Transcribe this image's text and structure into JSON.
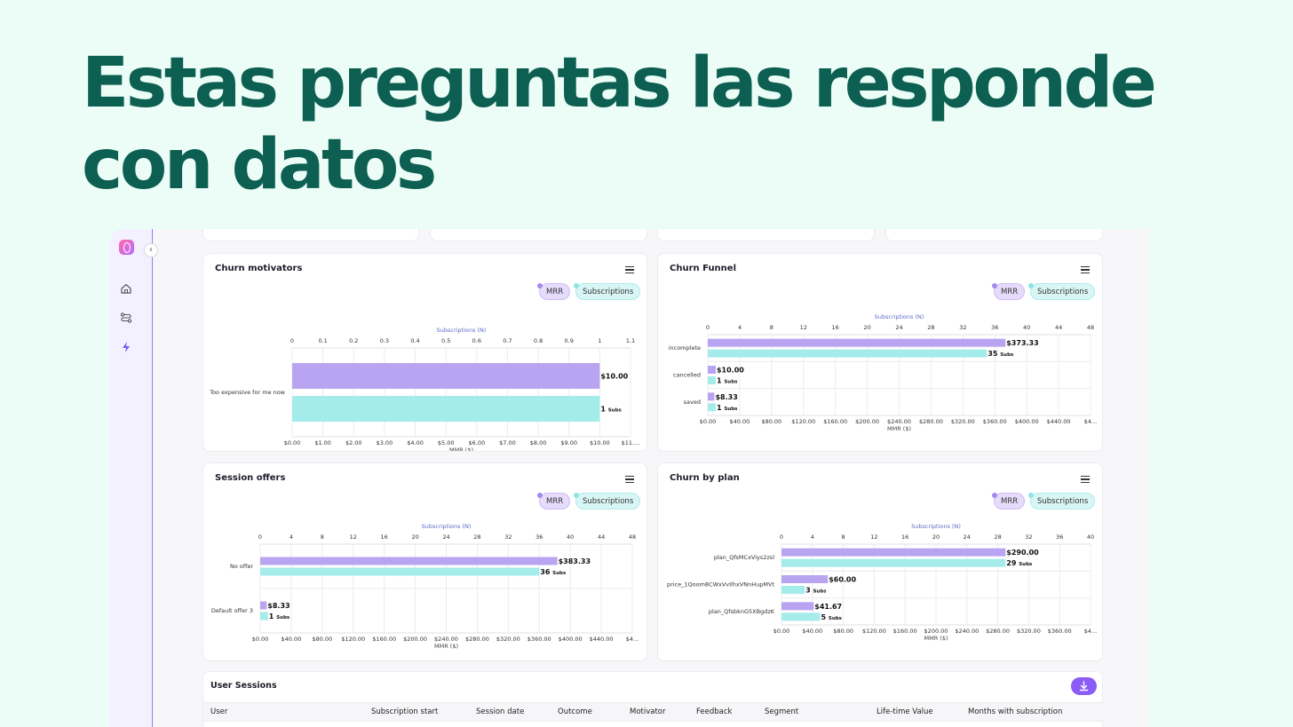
{
  "hero": {
    "line1": "Estas preguntas las responde",
    "line2": "con datos"
  },
  "sidebar": {
    "collapse_glyph": "‹",
    "items": [
      {
        "name": "home-icon"
      },
      {
        "name": "flows-icon"
      },
      {
        "name": "bolt-icon"
      }
    ]
  },
  "colors": {
    "mrr": "#b9a4f2",
    "subs": "#a3ecea",
    "accent": "#8b5cf6",
    "title": "#0d5f52"
  },
  "charts": {
    "motivators": {
      "title": "Churn motivators",
      "legend_mrr": "MRR",
      "legend_subs": "Subscriptions"
    },
    "funnel": {
      "title": "Churn Funnel",
      "legend_mrr": "MRR",
      "legend_subs": "Subscriptions"
    },
    "offers": {
      "title": "Session offers",
      "legend_mrr": "MRR",
      "legend_subs": "Subscriptions"
    },
    "plan": {
      "title": "Churn by plan",
      "legend_mrr": "MRR",
      "legend_subs": "Subscriptions"
    }
  },
  "chart_data": [
    {
      "type": "bar",
      "id": "motivators",
      "title": "Churn motivators",
      "top_axis_label": "Subscriptions (N)",
      "top_ticks": [
        "0",
        "0.1",
        "0.2",
        "0.3",
        "0.4",
        "0.5",
        "0.6",
        "0.7",
        "0.8",
        "0.9",
        "1",
        "1.1"
      ],
      "bottom_axis_label": "MMR ($)",
      "bottom_ticks": [
        "$0.00",
        "$1.00",
        "$2.00",
        "$3.00",
        "$4.00",
        "$5.00",
        "$6.00",
        "$7.00",
        "$8.00",
        "$9.00",
        "$10.00",
        "$11...."
      ],
      "categories": [
        "Too expensive for me now"
      ],
      "series": [
        {
          "name": "MRR",
          "values": [
            10.0
          ],
          "labels": [
            "$10.00"
          ],
          "max": 11
        },
        {
          "name": "Subscriptions",
          "values": [
            1
          ],
          "labels": [
            "1"
          ],
          "max": 1.1
        }
      ],
      "subs_suffix": "Subs"
    },
    {
      "type": "bar",
      "id": "funnel",
      "title": "Churn Funnel",
      "top_axis_label": "Subscriptions (N)",
      "top_ticks": [
        "0",
        "4",
        "8",
        "12",
        "16",
        "20",
        "24",
        "28",
        "32",
        "36",
        "40",
        "44",
        "48"
      ],
      "bottom_axis_label": "MMR ($)",
      "bottom_ticks": [
        "$0.00",
        "$40.00",
        "$80.00",
        "$120.00",
        "$160.00",
        "$200.00",
        "$240.00",
        "$280.00",
        "$320.00",
        "$360.00",
        "$400.00",
        "$440.00",
        "$4..."
      ],
      "categories": [
        "incomplete",
        "cancelled",
        "saved"
      ],
      "series": [
        {
          "name": "MRR",
          "values": [
            373.33,
            10.0,
            8.33
          ],
          "labels": [
            "$373.33",
            "$10.00",
            "$8.33"
          ],
          "max": 480
        },
        {
          "name": "Subscriptions",
          "values": [
            35,
            1,
            1
          ],
          "labels": [
            "35",
            "1",
            "1"
          ],
          "max": 48
        }
      ],
      "subs_suffix": "Subs"
    },
    {
      "type": "bar",
      "id": "offers",
      "title": "Session offers",
      "top_axis_label": "Subscriptions (N)",
      "top_ticks": [
        "0",
        "4",
        "8",
        "12",
        "16",
        "20",
        "24",
        "28",
        "32",
        "36",
        "40",
        "44",
        "48"
      ],
      "bottom_axis_label": "MMR ($)",
      "bottom_ticks": [
        "$0.00",
        "$40.00",
        "$80.00",
        "$120.00",
        "$160.00",
        "$200.00",
        "$240.00",
        "$280.00",
        "$320.00",
        "$360.00",
        "$400.00",
        "$440.00",
        "$4..."
      ],
      "categories": [
        "No offer",
        "Default offer 3"
      ],
      "series": [
        {
          "name": "MRR",
          "values": [
            383.33,
            8.33
          ],
          "labels": [
            "$383.33",
            "$8.33"
          ],
          "max": 480
        },
        {
          "name": "Subscriptions",
          "values": [
            36,
            1
          ],
          "labels": [
            "36",
            "1"
          ],
          "max": 48
        }
      ],
      "subs_suffix": "Subs"
    },
    {
      "type": "bar",
      "id": "plan",
      "title": "Churn by plan",
      "top_axis_label": "Subscriptions (N)",
      "top_ticks": [
        "0",
        "4",
        "8",
        "12",
        "16",
        "20",
        "24",
        "28",
        "32",
        "36",
        "40"
      ],
      "bottom_axis_label": "MMR ($)",
      "bottom_ticks": [
        "$0.00",
        "$40.00",
        "$80.00",
        "$120.00",
        "$160.00",
        "$200.00",
        "$240.00",
        "$280.00",
        "$320.00",
        "$360.00",
        "$4..."
      ],
      "categories": [
        "plan_QfsMCxViys2zsl",
        "price_1Qoom8CWxVvIlhxVNnHupMVt",
        "plan_QfsbknG5XBgdzK"
      ],
      "series": [
        {
          "name": "MRR",
          "values": [
            290.0,
            60.0,
            41.67
          ],
          "labels": [
            "$290.00",
            "$60.00",
            "$41.67"
          ],
          "max": 400
        },
        {
          "name": "Subscriptions",
          "values": [
            29,
            3,
            5
          ],
          "labels": [
            "29",
            "3",
            "5"
          ],
          "max": 40
        }
      ],
      "subs_suffix": "Subs"
    }
  ],
  "sessions": {
    "title": "User Sessions",
    "columns": [
      "User",
      "Subscription start",
      "Session date",
      "Outcome",
      "Motivator",
      "Feedback",
      "Segment",
      "Life-time Value",
      "Months with subscription"
    ]
  }
}
